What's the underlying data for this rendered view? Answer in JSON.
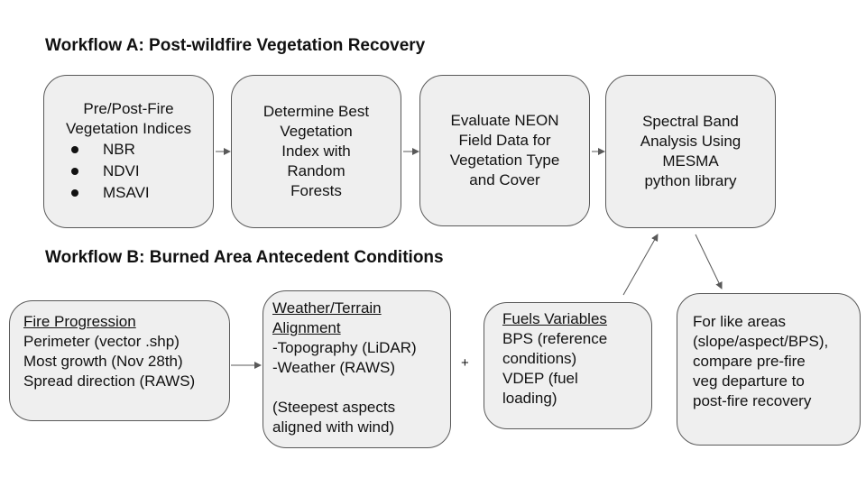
{
  "workflow_a": {
    "title": "Workflow A: Post-wildfire Vegetation Recovery",
    "box1": {
      "lines": [
        "Pre/Post-Fire",
        "Vegetation Indices"
      ],
      "indices": [
        "NBR",
        "NDVI",
        "MSAVI"
      ]
    },
    "box2": {
      "lines": [
        "Determine Best",
        "Vegetation",
        "Index with",
        "Random",
        "Forests"
      ]
    },
    "box3": {
      "lines": [
        "Evaluate NEON",
        "Field Data for",
        "Vegetation Type",
        "and Cover"
      ]
    },
    "box4": {
      "lines": [
        "Spectral Band",
        "Analysis Using",
        "MESMA",
        "python library"
      ]
    }
  },
  "workflow_b": {
    "title": "Workflow B: Burned Area Antecedent Conditions",
    "box1": {
      "heading": "Fire Progression",
      "lines": [
        "Perimeter (vector .shp)",
        "Most growth (Nov 28th)",
        "Spread direction (RAWS)"
      ]
    },
    "box2": {
      "heading": [
        "Weather/Terrain",
        "Alignment"
      ],
      "lines": [
        "-Topography (LiDAR)",
        "-Weather (RAWS)"
      ],
      "note": [
        "(Steepest aspects",
        "aligned with wind)"
      ]
    },
    "plus": "+",
    "box3": {
      "heading": "Fuels Variables",
      "lines": [
        "BPS (reference",
        "conditions)",
        "VDEP (fuel",
        "loading)"
      ]
    },
    "box4": {
      "lines": [
        "For like areas",
        "(slope/aspect/BPS),",
        "compare pre-fire",
        "veg departure to",
        "post-fire recovery"
      ]
    }
  },
  "colors": {
    "box_fill": "#efefef",
    "box_border": "#595959",
    "arrow": "#595959",
    "text": "#111111"
  }
}
